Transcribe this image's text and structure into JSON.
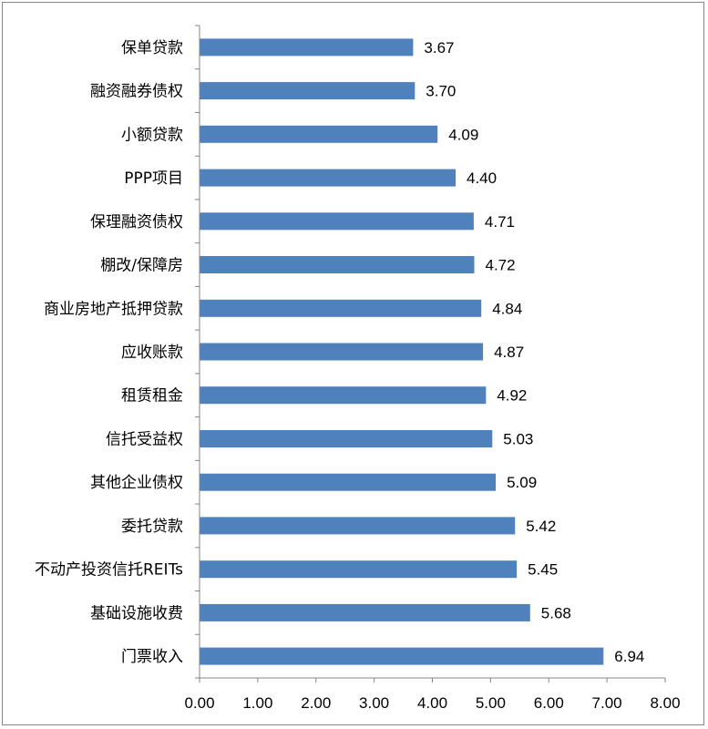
{
  "chart_data": {
    "type": "bar",
    "orientation": "horizontal",
    "categories": [
      "保单贷款",
      "融资融券债权",
      "小额贷款",
      "PPP项目",
      "保理融资债权",
      "棚改/保障房",
      "商业房地产抵押贷款",
      "应收账款",
      "租赁租金",
      "信托受益权",
      "其他企业债权",
      "委托贷款",
      "不动产投资信托REITs",
      "基础设施收费",
      "门票收入"
    ],
    "values": [
      3.67,
      3.7,
      4.09,
      4.4,
      4.71,
      4.72,
      4.84,
      4.87,
      4.92,
      5.03,
      5.09,
      5.42,
      5.45,
      5.68,
      6.94
    ],
    "value_labels": [
      "3.67",
      "3.70",
      "4.09",
      "4.40",
      "4.71",
      "4.72",
      "4.84",
      "4.87",
      "4.92",
      "5.03",
      "5.09",
      "5.42",
      "5.45",
      "5.68",
      "6.94"
    ],
    "xlim": [
      0,
      8
    ],
    "xticks": [
      "0.00",
      "1.00",
      "2.00",
      "3.00",
      "4.00",
      "5.00",
      "6.00",
      "7.00",
      "8.00"
    ],
    "title": "",
    "xlabel": "",
    "ylabel": "",
    "grid": false,
    "legend": "none",
    "bar_color": "#4f81bd"
  }
}
